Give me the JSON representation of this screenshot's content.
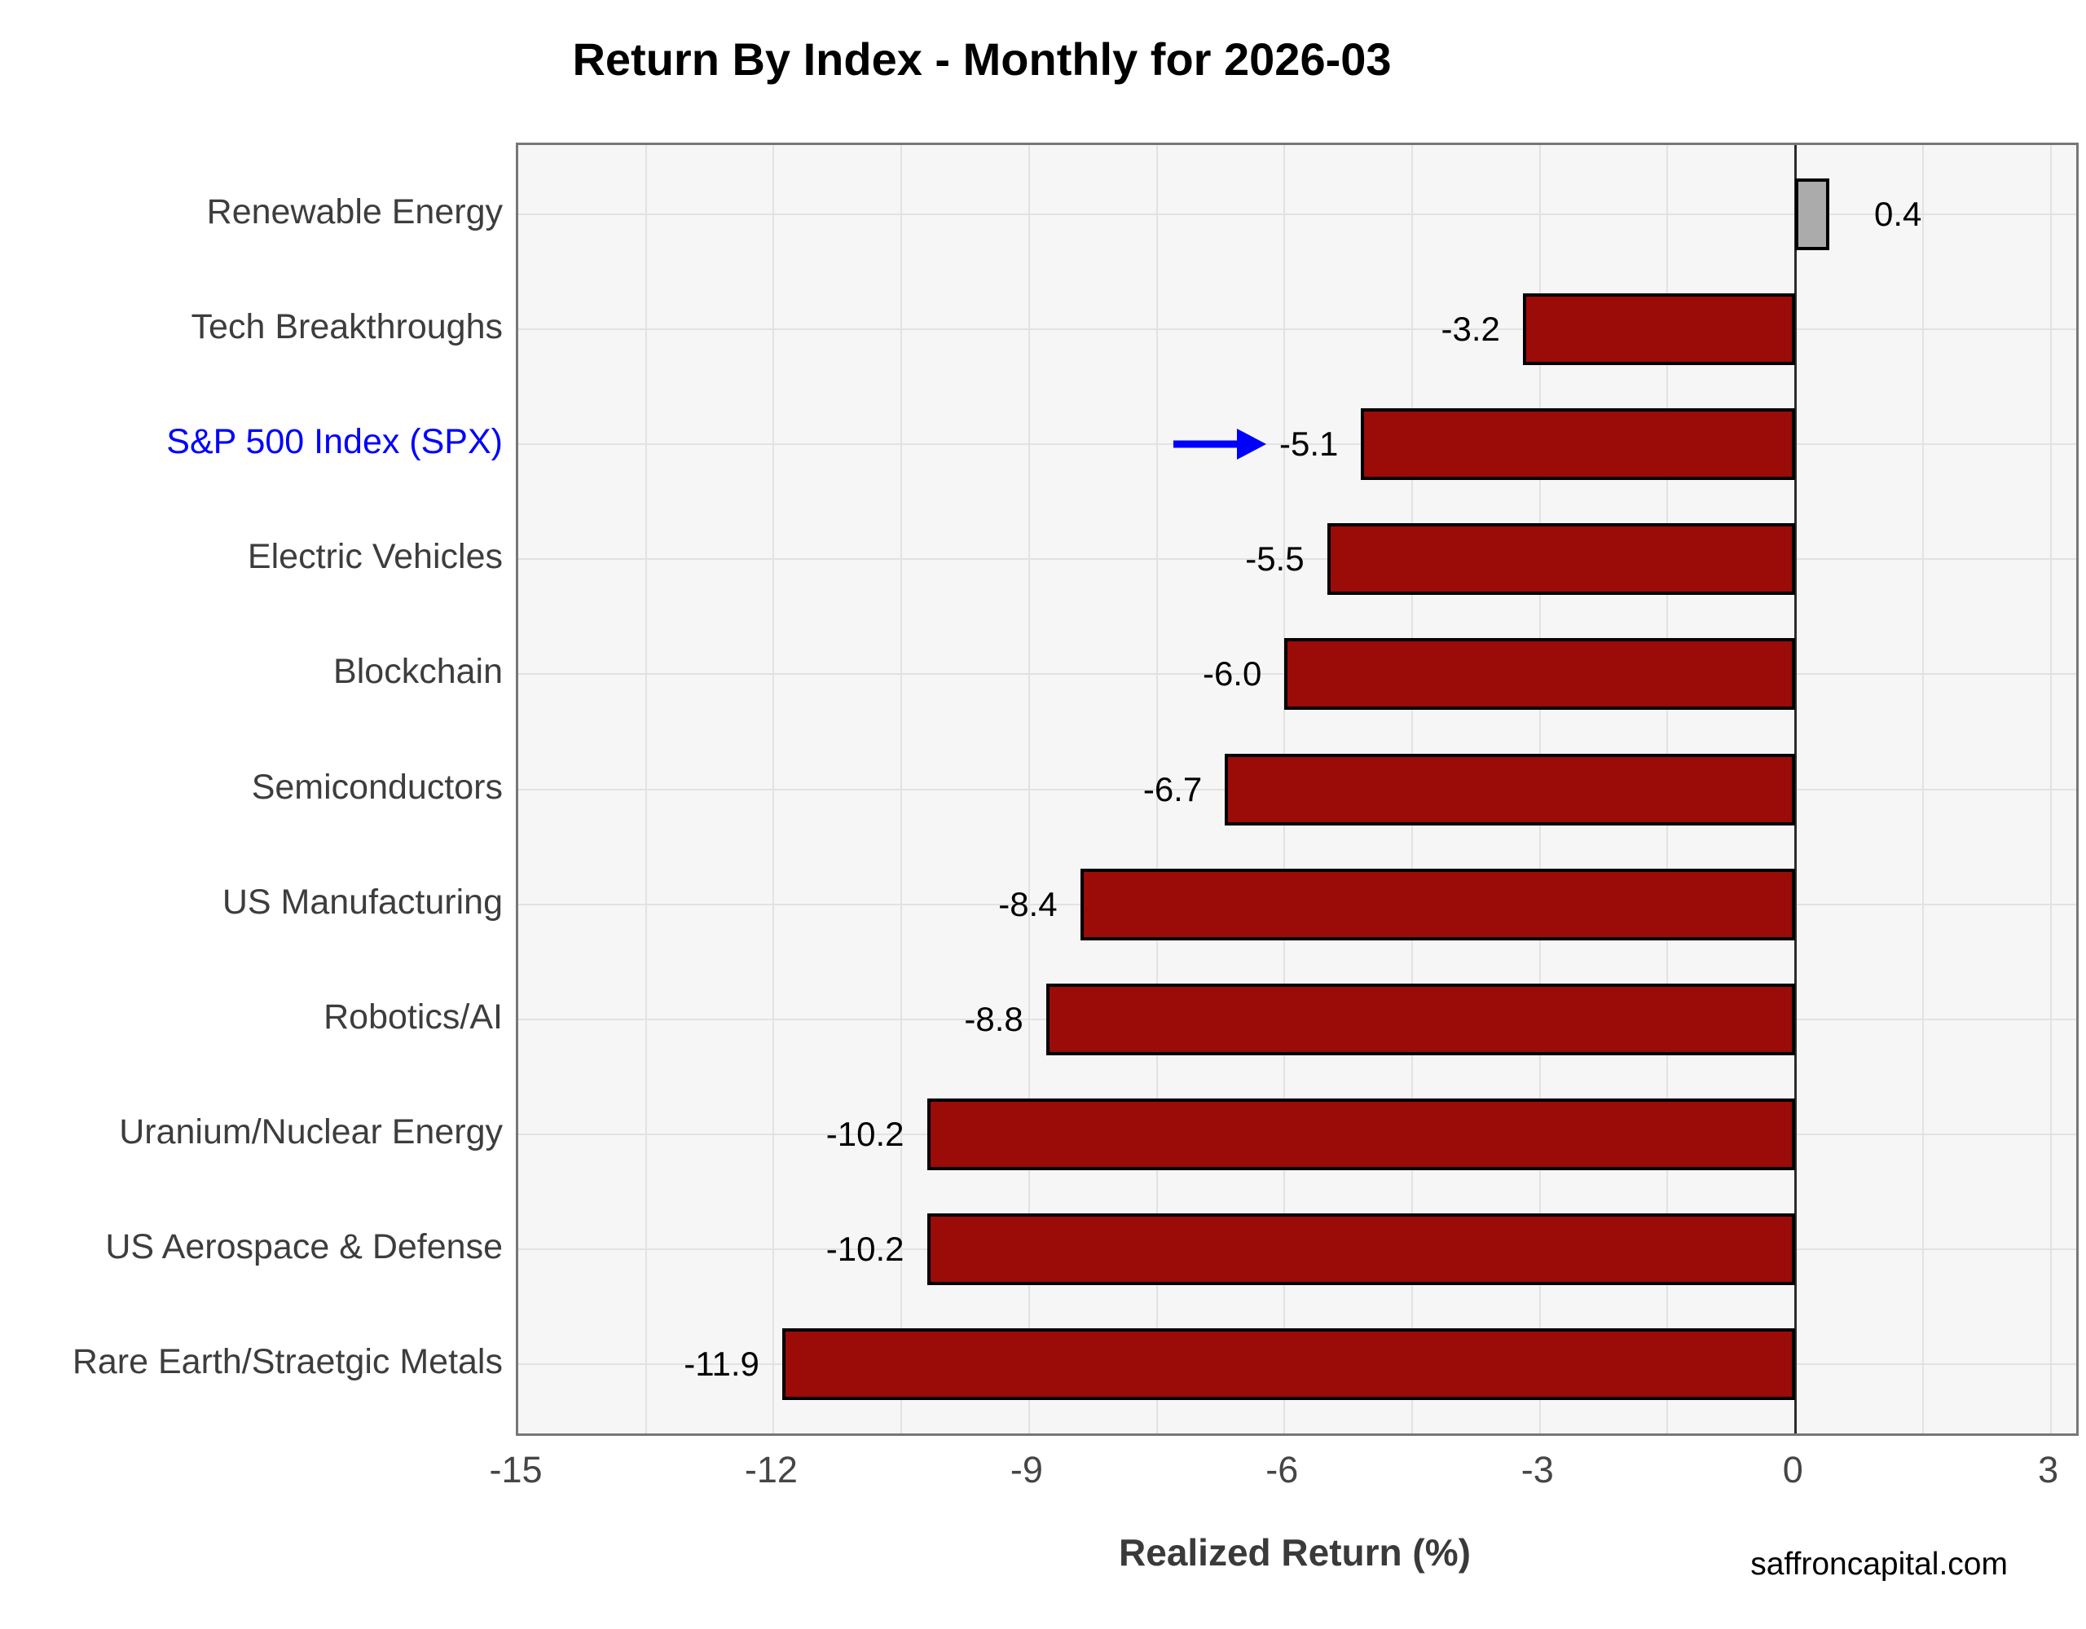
{
  "title": "Return By Index - Monthly for 2026-03",
  "watermark": "saffroncapital.com",
  "chart_data": {
    "type": "bar",
    "orientation": "horizontal",
    "title": "Return By Index - Monthly for 2026-03",
    "xlabel": "Realized Return (%)",
    "ylabel": "",
    "categories": [
      "Renewable Energy",
      "Tech Breakthroughs",
      "S&P 500 Index (SPX)",
      "Electric Vehicles",
      "Blockchain",
      "Semiconductors",
      "US Manufacturing",
      "Robotics/AI",
      "Uranium/Nuclear Energy",
      "US Aerospace & Defense",
      "Rare Earth/Straetgic Metals"
    ],
    "values": [
      0.4,
      -3.2,
      -5.1,
      -5.5,
      -6.0,
      -6.7,
      -8.4,
      -8.8,
      -10.2,
      -10.2,
      -11.9
    ],
    "value_labels": [
      "0.4",
      "-3.2",
      "-5.1",
      "-5.5",
      "-6.0",
      "-6.7",
      "-8.4",
      "-8.8",
      "-10.2",
      "-10.2",
      "-11.9"
    ],
    "xlim": [
      -15,
      3.3
    ],
    "xticks": [
      -15,
      -12,
      -9,
      -6,
      -3,
      0,
      3
    ],
    "xtick_labels": [
      "-15",
      "-12",
      "-9",
      "-6",
      "-3",
      "0",
      "3"
    ],
    "minor_grid_step": 1.5,
    "grid": true,
    "legend": "none",
    "highlight_category": "S&P 500 Index (SPX)",
    "annotation": {
      "type": "arrow",
      "target_category": "S&P 500 Index (SPX)",
      "direction": "right"
    },
    "colors": {
      "bar_negative": "#9b0b08",
      "bar_positive": "#ababab",
      "bar_border": "#000000",
      "highlight_label": "#0000ff",
      "arrow": "#0000ff",
      "panel_bg": "#f6f6f6",
      "grid": "#e2e2e2",
      "zero_line": "#2b2b2b",
      "tick_text": "#454545",
      "category_text": "#3d3d3d"
    }
  }
}
